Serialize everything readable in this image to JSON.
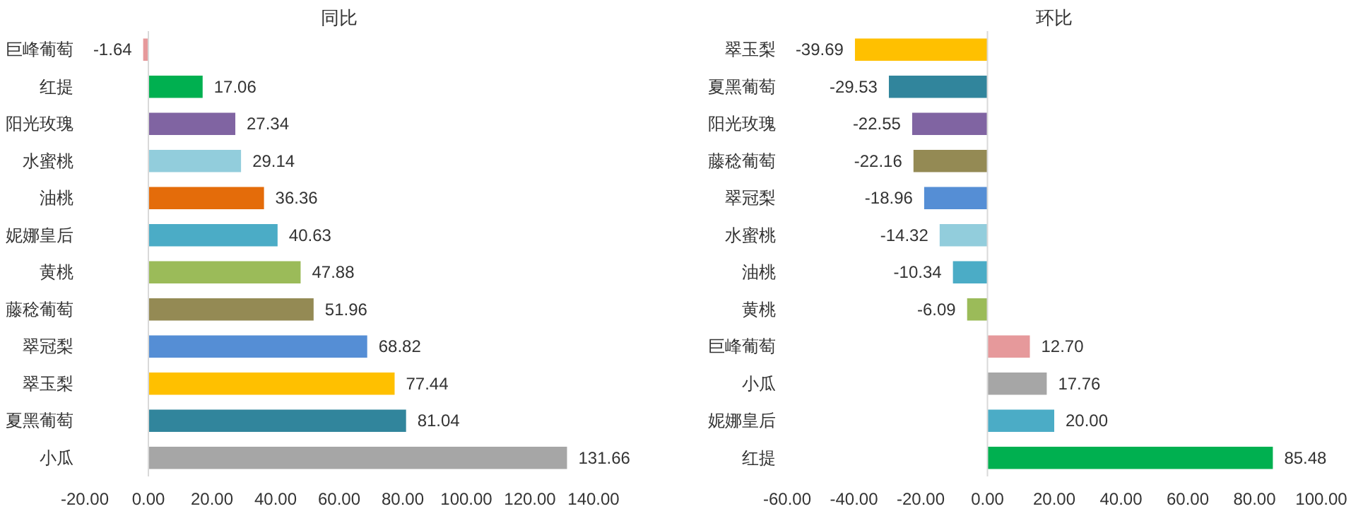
{
  "chart_data": [
    {
      "type": "bar",
      "orientation": "horizontal",
      "title": "同比",
      "categories": [
        "巨峰葡萄",
        "红提",
        "阳光玫瑰",
        "水蜜桃",
        "油桃",
        "妮娜皇后",
        "黄桃",
        "藤稔葡萄",
        "翠冠梨",
        "翠玉梨",
        "夏黑葡萄",
        "小瓜"
      ],
      "values": [
        -1.64,
        17.06,
        27.34,
        29.14,
        36.36,
        40.63,
        47.88,
        51.96,
        68.82,
        77.44,
        81.04,
        131.66
      ],
      "value_labels": [
        "-1.64",
        "17.06",
        "27.34",
        "29.14",
        "36.36",
        "40.63",
        "47.88",
        "51.96",
        "68.82",
        "77.44",
        "81.04",
        "131.66"
      ],
      "colors": [
        "#e6999b",
        "#00b050",
        "#8064a2",
        "#92cddc",
        "#e46c0a",
        "#4bacc6",
        "#9bbb59",
        "#948a54",
        "#558ed5",
        "#ffc000",
        "#31859c",
        "#a6a6a6"
      ],
      "xlim": [
        -20,
        140
      ],
      "xticks": [
        {
          "value": -20,
          "label": "-20.00"
        },
        {
          "value": 0,
          "label": "0.00"
        },
        {
          "value": 20,
          "label": "20.00"
        },
        {
          "value": 40,
          "label": "40.00"
        },
        {
          "value": 60,
          "label": "60.00"
        },
        {
          "value": 80,
          "label": "80.00"
        },
        {
          "value": 100,
          "label": "100.00"
        },
        {
          "value": 120,
          "label": "120.00"
        },
        {
          "value": 140,
          "label": "140.00"
        }
      ]
    },
    {
      "type": "bar",
      "orientation": "horizontal",
      "title": "环比",
      "categories": [
        "翠玉梨",
        "夏黑葡萄",
        "阳光玫瑰",
        "藤稔葡萄",
        "翠冠梨",
        "水蜜桃",
        "油桃",
        "黄桃",
        "巨峰葡萄",
        "小瓜",
        "妮娜皇后",
        "红提"
      ],
      "values": [
        -39.69,
        -29.53,
        -22.55,
        -22.16,
        -18.96,
        -14.32,
        -10.34,
        -6.09,
        12.7,
        17.76,
        20,
        85.48
      ],
      "value_labels": [
        "-39.69",
        "-29.53",
        "-22.55",
        "-22.16",
        "-18.96",
        "-14.32",
        "-10.34",
        "-6.09",
        "12.70",
        "17.76",
        "20.00",
        "85.48"
      ],
      "colors": [
        "#ffc000",
        "#31859c",
        "#8064a2",
        "#948a54",
        "#558ed5",
        "#92cddc",
        "#4bacc6",
        "#9bbb59",
        "#e6999b",
        "#a6a6a6",
        "#4bacc6",
        "#00b050"
      ],
      "xlim": [
        -60,
        100
      ],
      "xticks": [
        {
          "value": -60,
          "label": "-60.00"
        },
        {
          "value": -40,
          "label": "-40.00"
        },
        {
          "value": -20,
          "label": "-20.00"
        },
        {
          "value": 0,
          "label": "0.00"
        },
        {
          "value": 20,
          "label": "20.00"
        },
        {
          "value": 40,
          "label": "40.00"
        },
        {
          "value": 60,
          "label": "60.00"
        },
        {
          "value": 80,
          "label": "80.00"
        },
        {
          "value": 100,
          "label": "100.00"
        }
      ]
    }
  ]
}
